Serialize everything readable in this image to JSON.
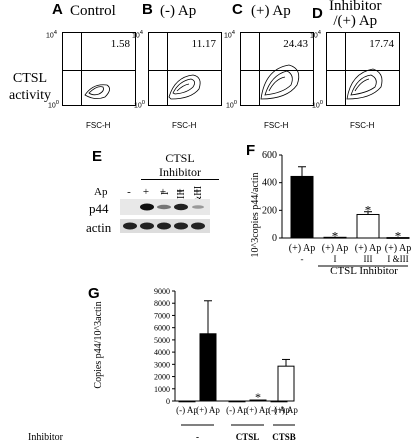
{
  "panel_a_d": {
    "row_label": [
      "CTSL",
      "activity"
    ],
    "axis": {
      "y_top": "10",
      "y_top_exp": "4",
      "y_bottom": "10",
      "y_bottom_exp": "0",
      "x_left": "10",
      "x_left_exp": "0",
      "x_right": "1000",
      "x_label": "FSC-H"
    },
    "panels": [
      {
        "letter": "A",
        "title": "Control",
        "value": "1.58"
      },
      {
        "letter": "B",
        "title": "(-) Ap",
        "value": "11.17"
      },
      {
        "letter": "C",
        "title": "(+) Ap",
        "value": "24.43"
      },
      {
        "letter": "D",
        "title_line1": "Inhibitor",
        "title_line2": "/(+) Ap",
        "value": "17.74"
      }
    ]
  },
  "panel_e": {
    "letter": "E",
    "inhibitor_header": [
      "CTSL",
      "Inhibitor"
    ],
    "lane_inhibitors": [
      "",
      "",
      "I",
      "III",
      "I&III"
    ],
    "ap_label": "Ap",
    "ap_lanes": [
      "-",
      "+",
      "+",
      "+",
      "+"
    ],
    "rows": [
      "p44",
      "actin"
    ]
  },
  "chart_data": [
    {
      "panel": "F",
      "type": "bar",
      "ylabel": "10^3copies p44/actin",
      "ylim": [
        0,
        600
      ],
      "yticks": [
        0,
        200,
        400,
        600
      ],
      "categories": [
        "(+) Ap",
        "(+) Ap",
        "(+) Ap",
        "(+) Ap"
      ],
      "sublabels": [
        "-",
        "I",
        "III",
        "I &III"
      ],
      "group_label": "CTSL  Inhibitor",
      "values": [
        445,
        5,
        170,
        3
      ],
      "errors": [
        70,
        0,
        20,
        0
      ],
      "fills": [
        "black",
        "black",
        "white",
        "white"
      ],
      "significance": [
        "",
        "*",
        "*",
        "*"
      ]
    },
    {
      "panel": "G",
      "type": "bar",
      "ylabel": "Copies p44/10^3actin",
      "ylim": [
        0,
        9000
      ],
      "yticks": [
        0,
        1000,
        2000,
        3000,
        4000,
        5000,
        6000,
        7000,
        8000,
        9000
      ],
      "categories": [
        "(-) Ap",
        "(+) Ap",
        "(-) Ap",
        "(+) Ap",
        "(-) Ap",
        "(+) Ap"
      ],
      "values": [
        0,
        5500,
        0,
        80,
        0,
        2850
      ],
      "errors": [
        0,
        2700,
        0,
        0,
        0,
        550
      ],
      "fills": [
        "black",
        "black",
        "black",
        "black",
        "white",
        "white"
      ],
      "significance": [
        "",
        "",
        "",
        "*",
        "",
        ""
      ],
      "inhibitor_title": "Inhibitor",
      "inhibitor_groups": [
        "-",
        "CTSL",
        "CTSB"
      ]
    }
  ]
}
